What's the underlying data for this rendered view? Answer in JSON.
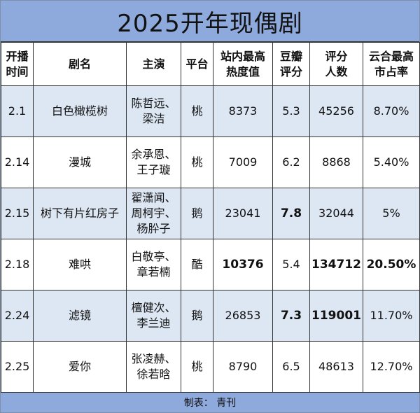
{
  "title": "2025开年现偶剧",
  "headers": {
    "date": [
      "开播",
      "时间"
    ],
    "name": "剧名",
    "cast": "主演",
    "platform": "平台",
    "heat": [
      "站内最高",
      "热度值"
    ],
    "douban": [
      "豆瓣",
      "评分"
    ],
    "raters": [
      "评分",
      "人数"
    ],
    "share": [
      "云合最高",
      "市占率"
    ]
  },
  "rows": [
    {
      "date": "2.1",
      "name": "白色橄榄树",
      "cast": [
        "陈哲远、",
        "梁洁"
      ],
      "platform": "桃",
      "heat": "8373",
      "douban": "5.3",
      "raters": "45256",
      "share": "8.70%"
    },
    {
      "date": "2.14",
      "name": "漫城",
      "cast": [
        "余承恩、",
        "王子璇"
      ],
      "platform": "桃",
      "heat": "7009",
      "douban": "6.2",
      "raters": "8868",
      "share": "5.40%"
    },
    {
      "date": "2.15",
      "name": "树下有片红房子",
      "cast": [
        "翟潇闻、",
        "周柯宇、",
        "杨肸子"
      ],
      "platform": "鹅",
      "heat": "23041",
      "douban": "7.8",
      "raters": "32044",
      "share": "5%"
    },
    {
      "date": "2.18",
      "name": "难哄",
      "cast": [
        "白敬亭、",
        "章若楠"
      ],
      "platform": "酷",
      "heat": "10376",
      "douban": "5.4",
      "raters": "134712",
      "share": "20.50%"
    },
    {
      "date": "2.24",
      "name": "滤镜",
      "cast": [
        "檀健次、",
        "李兰迪"
      ],
      "platform": "鹅",
      "heat": "26853",
      "douban": "7.3",
      "raters": "119001",
      "share": "11.70%"
    },
    {
      "date": "2.25",
      "name": "爱你",
      "cast": [
        "张凌赫、",
        "徐若晗"
      ],
      "platform": "桃",
      "heat": "8790",
      "douban": "6.5",
      "raters": "48613",
      "share": "12.70%"
    }
  ],
  "footer": "制表：  青刊"
}
